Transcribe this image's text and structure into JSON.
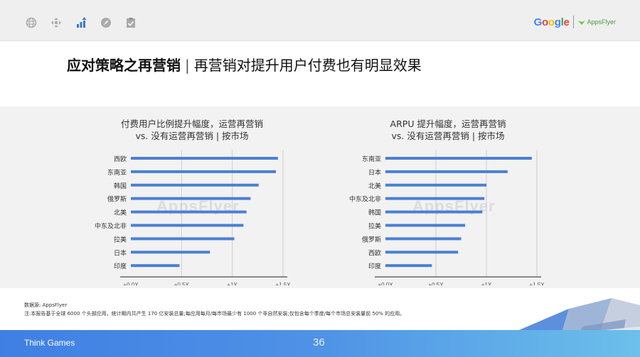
{
  "header": {
    "icons": [
      "globe-icon",
      "move-icon",
      "bar-chart-icon",
      "compass-icon",
      "clipboard-check-icon"
    ],
    "active_icon": "bar-chart-icon",
    "logo_google": "Google",
    "logo_appsflyer": "AppsFlyer"
  },
  "title": {
    "main": "应对策略之再营销",
    "separator": "|",
    "sub": "再营销对提升用户付费也有明显效果"
  },
  "watermark": "AppsFlyer",
  "chart_data": [
    {
      "type": "bar",
      "orientation": "horizontal",
      "title_line1": "付费用户比例提升幅度，运营再营销",
      "title_line2": "vs. 没有运营再营销 | 按市场",
      "categories": [
        "西欧",
        "东南亚",
        "韩国",
        "俄罗斯",
        "北美",
        "中东及北非",
        "拉美",
        "日本",
        "印度"
      ],
      "values": [
        1.45,
        1.43,
        1.26,
        1.18,
        1.14,
        1.11,
        1.02,
        0.78,
        0.48
      ],
      "xlim": [
        0,
        1.5
      ],
      "ticks": [
        0,
        0.5,
        1,
        1.5
      ],
      "tick_labels": [
        "+0.0X",
        "+0.5X",
        "+1X",
        "+1.5X"
      ],
      "grid": true,
      "color": "#4a7fd4"
    },
    {
      "type": "bar",
      "orientation": "horizontal",
      "title_line1": "ARPU 提升幅度，运营再营销",
      "title_line2": "vs. 没有运营再营销 | 按市场",
      "categories": [
        "东南亚",
        "日本",
        "北美",
        "中东及北非",
        "韩国",
        "拉美",
        "俄罗斯",
        "西欧",
        "印度"
      ],
      "values": [
        1.45,
        1.21,
        1.0,
        0.98,
        0.96,
        0.79,
        0.75,
        0.72,
        0.46
      ],
      "xlim": [
        0,
        1.5
      ],
      "ticks": [
        0,
        0.5,
        1,
        1.5
      ],
      "tick_labels": [
        "+0.0X",
        "+0.5X",
        "+1X",
        "+1.5X"
      ],
      "grid": true,
      "color": "#4a7fd4"
    }
  ],
  "notes": {
    "source": "数据源: AppsFlyer",
    "footnote": "注:本报告基于全球 6000 个头部应用，统计期内共产生 170 亿安装总量;每应用每月/每市场最少有 1000 个非自然安装;仅包含每个季度/每个市场总安装量前 50% 的应用。"
  },
  "footer": {
    "brand": "Think Games",
    "page": "36"
  }
}
